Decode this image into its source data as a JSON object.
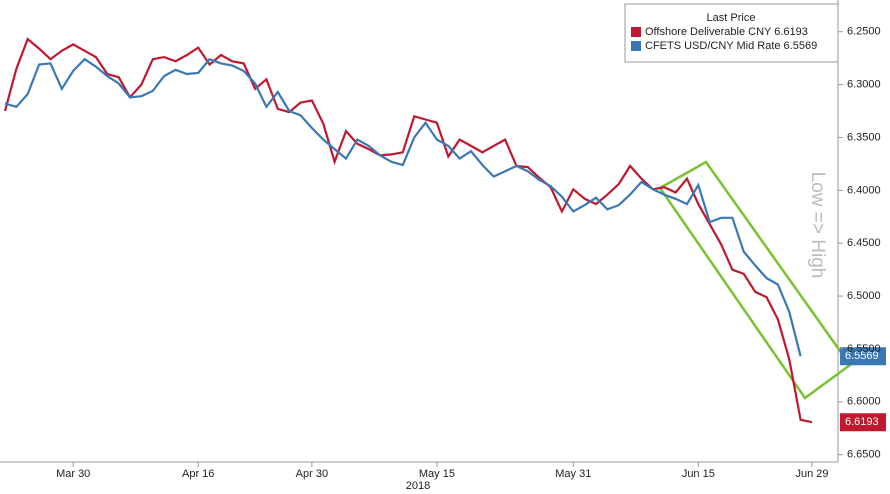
{
  "chart_data": {
    "type": "line",
    "categories": [
      null,
      null,
      null,
      null,
      null,
      null,
      "Mar 30",
      null,
      null,
      null,
      null,
      null,
      null,
      null,
      null,
      null,
      null,
      "Apr 16",
      null,
      null,
      null,
      null,
      null,
      null,
      null,
      null,
      null,
      "Apr 30",
      null,
      null,
      null,
      null,
      null,
      null,
      null,
      null,
      null,
      null,
      "May 15",
      null,
      null,
      null,
      null,
      null,
      null,
      null,
      null,
      null,
      null,
      null,
      "May 31",
      null,
      null,
      null,
      null,
      null,
      null,
      null,
      null,
      null,
      null,
      "Jun 15",
      null,
      null,
      null,
      null,
      null,
      null,
      null,
      null,
      null,
      "Jun 29"
    ],
    "x_sublabel": "2018",
    "legend_title": "Last Price",
    "y_label": "Low => High",
    "y_inverted": true,
    "ylim": [
      6.22,
      6.655
    ],
    "yticks": [
      {
        "value": 6.25,
        "label": "6.2500"
      },
      {
        "value": 6.3,
        "label": "6.3000"
      },
      {
        "value": 6.35,
        "label": "6.3500"
      },
      {
        "value": 6.4,
        "label": "6.4000"
      },
      {
        "value": 6.45,
        "label": "6.4500"
      },
      {
        "value": 6.5,
        "label": "6.5000"
      },
      {
        "value": 6.55,
        "label": "6.5500"
      },
      {
        "value": 6.6,
        "label": "6.6000"
      },
      {
        "value": 6.65,
        "label": "6.6500"
      }
    ],
    "grid": false,
    "legend_position": "top-right",
    "series": [
      {
        "name": "Offshore Deliverable CNY 6.6193",
        "color": "#c0192f",
        "values": [
          6.325,
          6.285,
          6.257,
          6.266,
          6.276,
          6.268,
          6.262,
          6.268,
          6.274,
          6.29,
          6.293,
          6.312,
          6.3,
          6.276,
          6.274,
          6.278,
          6.272,
          6.265,
          6.281,
          6.272,
          6.278,
          6.28,
          6.304,
          6.295,
          6.323,
          6.326,
          6.317,
          6.315,
          6.337,
          6.373,
          6.344,
          6.356,
          6.361,
          6.367,
          6.366,
          6.364,
          6.33,
          6.333,
          6.336,
          6.368,
          6.352,
          6.358,
          6.364,
          6.358,
          6.352,
          6.377,
          6.378,
          6.388,
          6.397,
          6.42,
          6.399,
          6.408,
          6.413,
          6.404,
          6.394,
          6.377,
          6.389,
          6.399,
          6.397,
          6.402,
          6.389,
          6.413,
          6.432,
          6.451,
          6.475,
          6.479,
          6.496,
          6.501,
          6.522,
          6.56,
          6.617,
          6.6193
        ]
      },
      {
        "name": "CFETS USD/CNY Mid Rate 6.5569",
        "color": "#3a78b5",
        "values": [
          6.318,
          6.321,
          6.309,
          6.281,
          6.28,
          6.304,
          6.287,
          6.276,
          6.283,
          6.292,
          6.299,
          6.312,
          6.311,
          6.306,
          6.292,
          6.286,
          6.29,
          6.289,
          6.276,
          6.28,
          6.282,
          6.287,
          6.299,
          6.321,
          6.307,
          6.325,
          6.329,
          6.341,
          6.352,
          6.361,
          6.37,
          6.352,
          6.358,
          6.367,
          6.373,
          6.376,
          6.35,
          6.336,
          6.352,
          6.358,
          6.37,
          6.363,
          6.376,
          6.387,
          6.382,
          6.377,
          6.382,
          6.39,
          6.396,
          6.406,
          6.42,
          6.414,
          6.407,
          6.418,
          6.414,
          6.404,
          6.392,
          6.399,
          6.404,
          6.408,
          6.413,
          6.395,
          6.43,
          6.426,
          6.426,
          6.458,
          6.471,
          6.483,
          6.489,
          6.515,
          6.5569,
          null
        ]
      }
    ]
  }
}
